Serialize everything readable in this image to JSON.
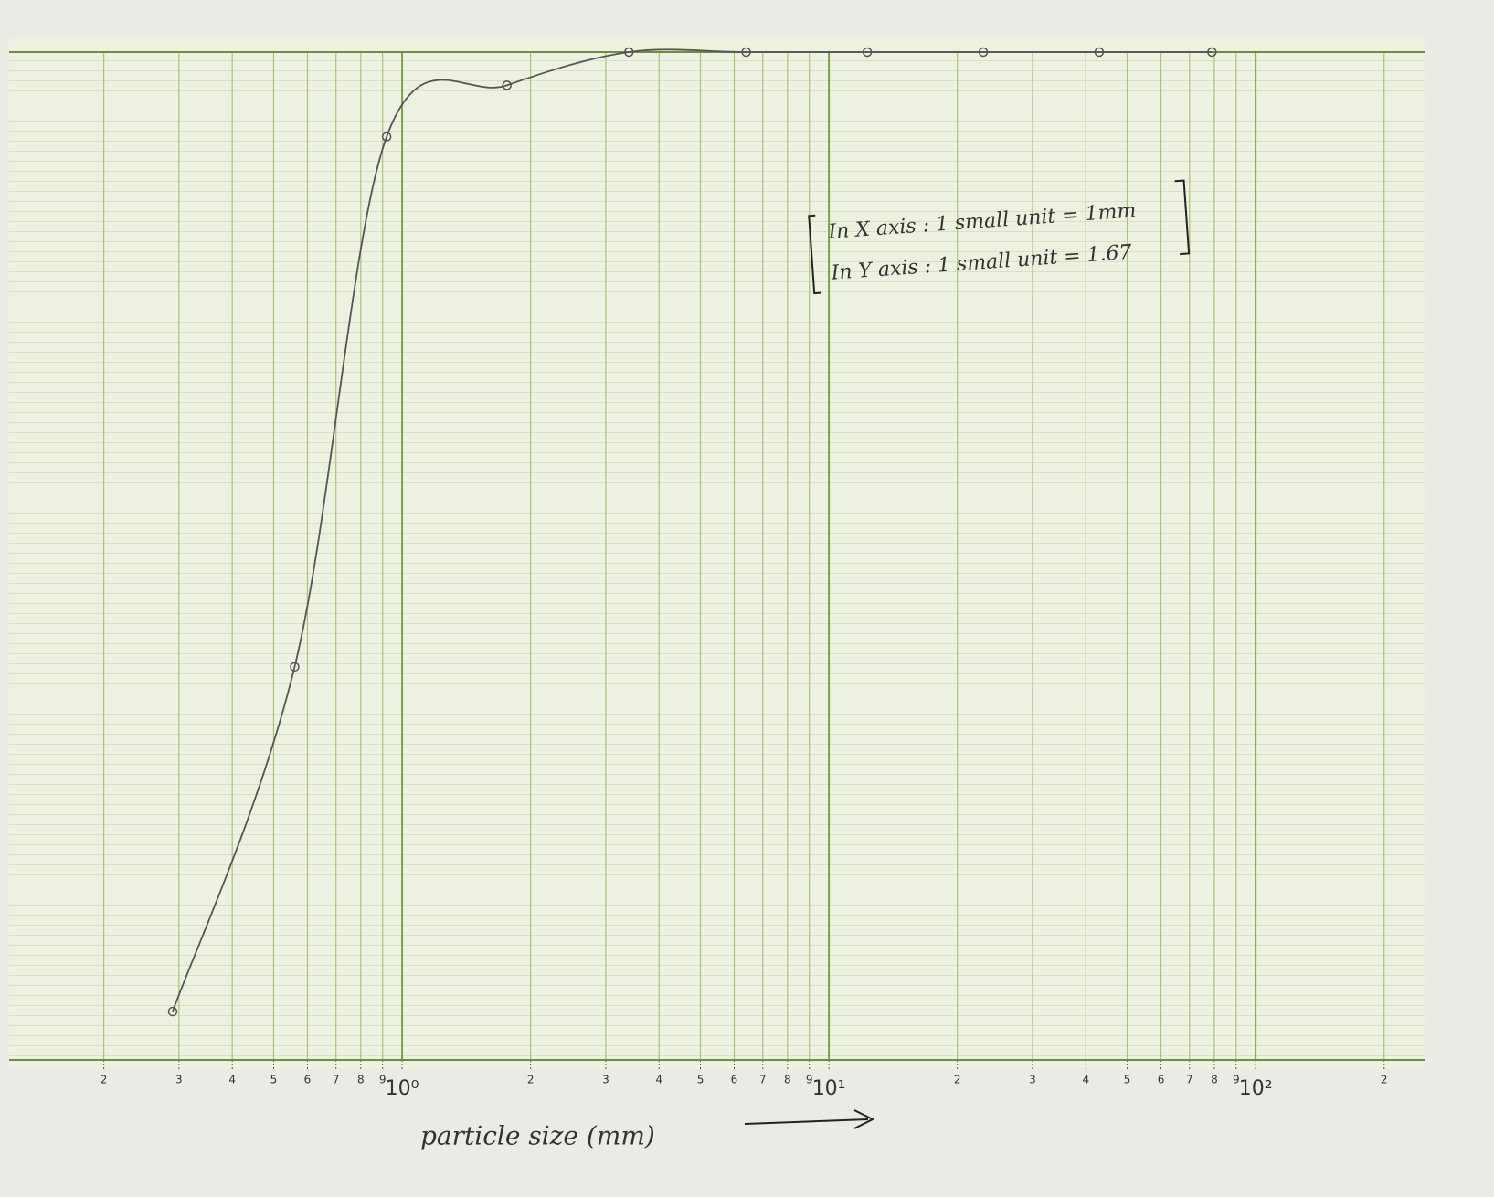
{
  "chart_data": {
    "type": "line",
    "xlabel": "particle size (mm)",
    "log_x": true,
    "grid": true,
    "xlim": [
      0.12,
      250
    ],
    "ylim": [
      0,
      100
    ],
    "xticks": [
      {
        "value": 0.2,
        "label": "2"
      },
      {
        "value": 0.3,
        "label": "3"
      },
      {
        "value": 0.4,
        "label": "4"
      },
      {
        "value": 0.5,
        "label": "5"
      },
      {
        "value": 0.6,
        "label": "6"
      },
      {
        "value": 0.7,
        "label": "7"
      },
      {
        "value": 0.8,
        "label": "8"
      },
      {
        "value": 0.9,
        "label": "9"
      },
      {
        "value": 1,
        "label": "10⁰"
      },
      {
        "value": 2,
        "label": "2"
      },
      {
        "value": 3,
        "label": "3"
      },
      {
        "value": 4,
        "label": "4"
      },
      {
        "value": 5,
        "label": "5"
      },
      {
        "value": 6,
        "label": "6"
      },
      {
        "value": 7,
        "label": "7"
      },
      {
        "value": 8,
        "label": "8"
      },
      {
        "value": 9,
        "label": "9"
      },
      {
        "value": 10,
        "label": "10¹"
      },
      {
        "value": 20,
        "label": "2"
      },
      {
        "value": 30,
        "label": "3"
      },
      {
        "value": 40,
        "label": "4"
      },
      {
        "value": 50,
        "label": "5"
      },
      {
        "value": 60,
        "label": "6"
      },
      {
        "value": 70,
        "label": "7"
      },
      {
        "value": 80,
        "label": "8"
      },
      {
        "value": 90,
        "label": "9"
      },
      {
        "value": 100,
        "label": "10²"
      },
      {
        "value": 200,
        "label": "2"
      }
    ],
    "annotations": [
      "In X axis : 1 small unit = 1mm",
      "In Y axis : 1 small unit = 1.67"
    ],
    "series": [
      {
        "color": "#555555",
        "x": [
          0.29,
          0.56,
          0.92,
          1.76,
          3.4,
          6.4,
          12.3,
          23,
          43,
          79
        ],
        "values": [
          4.8,
          39,
          91.6,
          96.7,
          100,
          100,
          100,
          100,
          100,
          100
        ]
      }
    ]
  }
}
